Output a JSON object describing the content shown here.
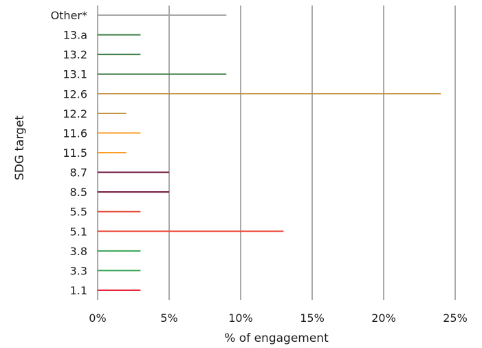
{
  "chart_data": {
    "type": "bar",
    "orientation": "horizontal",
    "title": "",
    "xlabel": "% of engagement",
    "ylabel": "SDG target",
    "xlim": [
      0,
      25
    ],
    "x_ticks": [
      "0%",
      "5%",
      "10%",
      "15%",
      "20%",
      "25%"
    ],
    "grid": "vertical",
    "legend": "none",
    "categories": [
      "Other*",
      "13.a",
      "13.2",
      "13.1",
      "12.6",
      "12.2",
      "11.6",
      "11.5",
      "8.7",
      "8.5",
      "5.5",
      "5.1",
      "3.8",
      "3.3",
      "1.1"
    ],
    "values": [
      9,
      3,
      3,
      9,
      24,
      2,
      3,
      2,
      5,
      5,
      3,
      13,
      3,
      3,
      3
    ],
    "colors": [
      "#a6a6a6",
      "#3f7e44",
      "#3f7e44",
      "#3f7e44",
      "#bf8b2e",
      "#bf8b2e",
      "#fd9d24",
      "#fd9d24",
      "#6b0f37",
      "#6b0f37",
      "#e94e3c",
      "#e94e3c",
      "#35a354",
      "#35a354",
      "#e5243b"
    ]
  }
}
